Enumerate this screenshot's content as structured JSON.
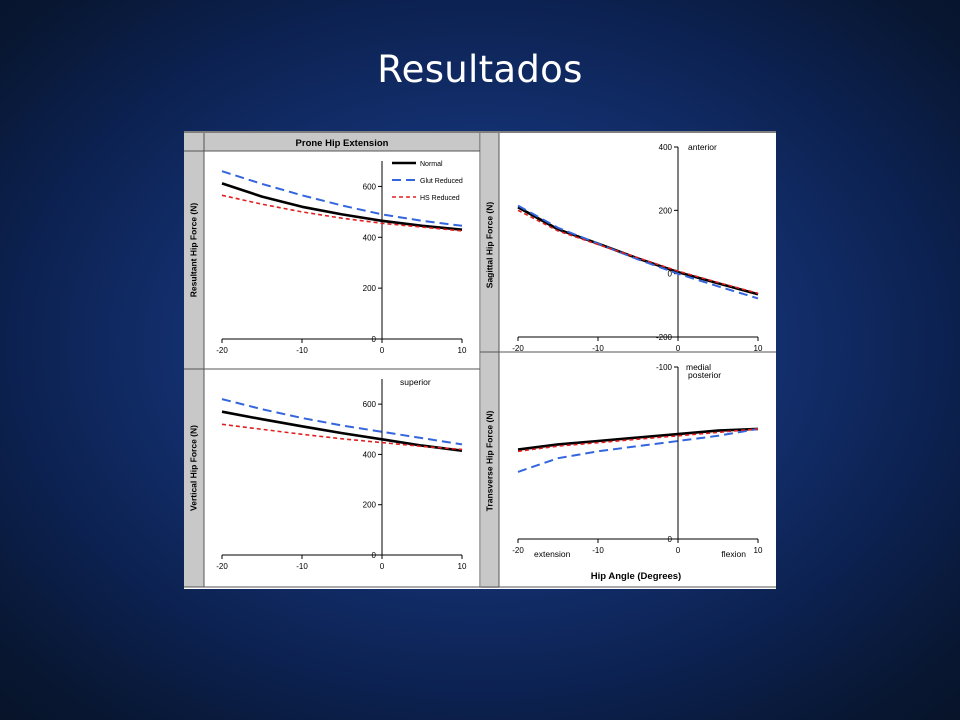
{
  "slide": {
    "title": "Resultados"
  },
  "figure": {
    "header": "Prone Hip Extension",
    "shared_xlabel": "Hip Angle (Degrees)"
  },
  "chart_data": [
    {
      "id": "resultant",
      "type": "line",
      "ylabel": "Resultant Hip Force (N)",
      "xlim": [
        -20,
        10
      ],
      "ylim": [
        0,
        700
      ],
      "xticks": [
        -20,
        -10,
        0,
        10
      ],
      "yticks": [
        0,
        200,
        400,
        600
      ],
      "legend": {
        "placement": "top-right",
        "entries": [
          "Normal",
          "Glut Reduced",
          "HS Reduced"
        ]
      },
      "annotations": [],
      "series": [
        {
          "name": "Normal",
          "color": "#000000",
          "dash": "solid",
          "width": 2.6,
          "x": [
            -20,
            -15,
            -10,
            -5,
            0,
            5,
            10
          ],
          "y": [
            612,
            560,
            520,
            490,
            465,
            445,
            430
          ]
        },
        {
          "name": "Glut Reduced",
          "color": "#3366dd",
          "dash": "long",
          "width": 2,
          "x": [
            -20,
            -15,
            -10,
            -5,
            0,
            5,
            10
          ],
          "y": [
            660,
            610,
            565,
            525,
            490,
            465,
            445
          ]
        },
        {
          "name": "HS Reduced",
          "color": "#e02020",
          "dash": "short",
          "width": 1.6,
          "x": [
            -20,
            -15,
            -10,
            -5,
            0,
            5,
            10
          ],
          "y": [
            565,
            530,
            500,
            475,
            455,
            440,
            425
          ]
        }
      ]
    },
    {
      "id": "vertical",
      "type": "line",
      "ylabel": "Vertical Hip Force (N)",
      "xlim": [
        -20,
        10
      ],
      "ylim": [
        0,
        700
      ],
      "xticks": [
        -20,
        -10,
        0,
        10
      ],
      "yticks": [
        0,
        200,
        400,
        600
      ],
      "annotations": [
        {
          "text": "superior",
          "position": "top-right"
        }
      ],
      "series": [
        {
          "name": "Normal",
          "color": "#000000",
          "dash": "solid",
          "width": 2.6,
          "x": [
            -20,
            -15,
            -10,
            -5,
            0,
            5,
            10
          ],
          "y": [
            570,
            540,
            512,
            485,
            460,
            435,
            415
          ]
        },
        {
          "name": "Glut Reduced",
          "color": "#3366dd",
          "dash": "long",
          "width": 2,
          "x": [
            -20,
            -15,
            -10,
            -5,
            0,
            5,
            10
          ],
          "y": [
            620,
            580,
            545,
            515,
            490,
            465,
            440
          ]
        },
        {
          "name": "HS Reduced",
          "color": "#e02020",
          "dash": "short",
          "width": 1.6,
          "x": [
            -20,
            -15,
            -10,
            -5,
            0,
            5,
            10
          ],
          "y": [
            520,
            500,
            480,
            462,
            447,
            432,
            420
          ]
        }
      ]
    },
    {
      "id": "sagittal",
      "type": "line",
      "ylabel": "Sagittal Hip Force (N)",
      "xlim": [
        -20,
        10
      ],
      "ylim": [
        -200,
        400
      ],
      "xticks": [
        -20,
        -10,
        0,
        10
      ],
      "yticks": [
        -200,
        0,
        200,
        400
      ],
      "annotations": [
        {
          "text": "anterior",
          "position": "top"
        },
        {
          "text": "posterior",
          "position": "bottom"
        }
      ],
      "series": [
        {
          "name": "Normal",
          "color": "#000000",
          "dash": "solid",
          "width": 2.6,
          "x": [
            -20,
            -15,
            -10,
            -5,
            0,
            5,
            10
          ],
          "y": [
            210,
            140,
            95,
            48,
            5,
            -30,
            -65
          ]
        },
        {
          "name": "Glut Reduced",
          "color": "#3366dd",
          "dash": "long",
          "width": 2,
          "x": [
            -20,
            -15,
            -10,
            -5,
            0,
            5,
            10
          ],
          "y": [
            215,
            145,
            95,
            45,
            0,
            -40,
            -78
          ]
        },
        {
          "name": "HS Reduced",
          "color": "#e02020",
          "dash": "short",
          "width": 1.6,
          "x": [
            -20,
            -15,
            -10,
            -5,
            0,
            5,
            10
          ],
          "y": [
            200,
            135,
            92,
            50,
            8,
            -28,
            -62
          ]
        }
      ]
    },
    {
      "id": "transverse",
      "type": "line",
      "ylabel": "Transverse Hip Force (N)",
      "xlabel": "Hip Angle (Degrees)",
      "xlim": [
        -20,
        10
      ],
      "ylim": [
        0,
        -100
      ],
      "xticks": [
        -20,
        -10,
        0,
        10
      ],
      "yticks": [
        0,
        -100
      ],
      "annotations": [
        {
          "text": "medial",
          "position": "top"
        },
        {
          "text": "extension",
          "position": "bottom-left"
        },
        {
          "text": "flexion",
          "position": "bottom-right"
        }
      ],
      "series": [
        {
          "name": "Normal",
          "color": "#000000",
          "dash": "solid",
          "width": 2.6,
          "x": [
            -20,
            -15,
            -10,
            -5,
            0,
            5,
            10
          ],
          "y": [
            -52,
            -55,
            -57,
            -59,
            -61,
            -63,
            -64
          ]
        },
        {
          "name": "Glut Reduced",
          "color": "#3366dd",
          "dash": "long",
          "width": 2,
          "x": [
            -20,
            -15,
            -10,
            -5,
            0,
            5,
            10
          ],
          "y": [
            -39,
            -47,
            -51,
            -54,
            -57,
            -60,
            -64
          ]
        },
        {
          "name": "HS Reduced",
          "color": "#e02020",
          "dash": "short",
          "width": 1.6,
          "x": [
            -20,
            -15,
            -10,
            -5,
            0,
            5,
            10
          ],
          "y": [
            -51,
            -54,
            -56,
            -58,
            -60,
            -62,
            -64
          ]
        }
      ]
    }
  ]
}
